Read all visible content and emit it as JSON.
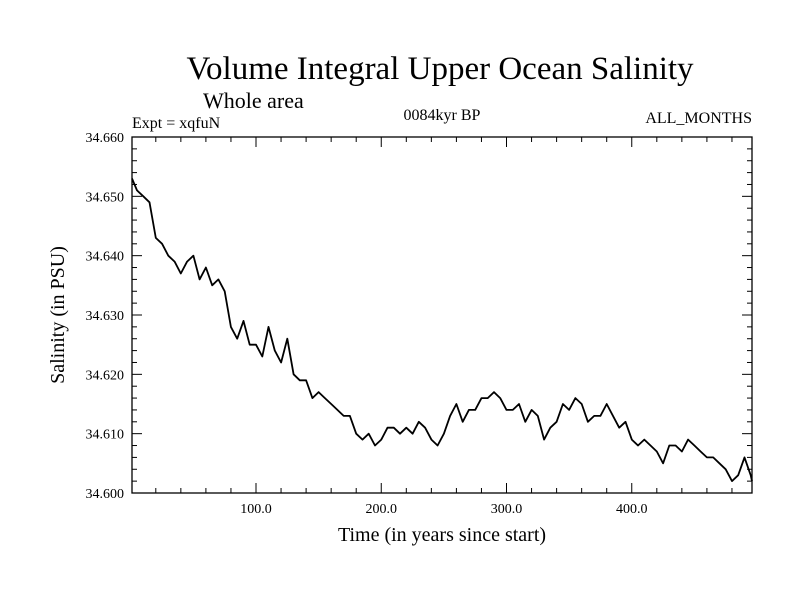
{
  "chart_data": {
    "type": "line",
    "title": "Volume Integral Upper Ocean Salinity",
    "subtitle": "Whole area",
    "experiment": "Expt = xqfuN",
    "period": "0084kyr BP",
    "months": "ALL_MONTHS",
    "xlabel": "Time (in years since start)",
    "ylabel": "Salinity (in PSU)",
    "xlim": [
      1,
      496
    ],
    "ylim": [
      34.6,
      34.66
    ],
    "x_ticks": [
      100,
      200,
      300,
      400
    ],
    "x_tick_labels": [
      "100.0",
      "200.0",
      "300.0",
      "400.0"
    ],
    "y_ticks": [
      34.6,
      34.61,
      34.62,
      34.63,
      34.64,
      34.65,
      34.66
    ],
    "y_tick_labels": [
      "34.600",
      "34.610",
      "34.620",
      "34.630",
      "34.640",
      "34.650",
      "34.660"
    ],
    "line_color": "#000000",
    "series": [
      {
        "name": "salinity",
        "x": [
          1,
          5,
          10,
          15,
          20,
          25,
          30,
          35,
          40,
          45,
          50,
          55,
          60,
          65,
          70,
          75,
          80,
          85,
          90,
          95,
          100,
          105,
          110,
          115,
          120,
          125,
          130,
          135,
          140,
          145,
          150,
          155,
          160,
          165,
          170,
          175,
          180,
          185,
          190,
          195,
          200,
          205,
          210,
          215,
          220,
          225,
          230,
          235,
          240,
          245,
          250,
          255,
          260,
          265,
          270,
          275,
          280,
          285,
          290,
          295,
          300,
          305,
          310,
          315,
          320,
          325,
          330,
          335,
          340,
          345,
          350,
          355,
          360,
          365,
          370,
          375,
          380,
          385,
          390,
          395,
          400,
          405,
          410,
          415,
          420,
          425,
          430,
          435,
          440,
          445,
          450,
          455,
          460,
          465,
          470,
          475,
          480,
          485,
          490,
          495,
          496
        ],
        "values": [
          34.653,
          34.651,
          34.65,
          34.649,
          34.643,
          34.642,
          34.64,
          34.639,
          34.637,
          34.639,
          34.64,
          34.636,
          34.638,
          34.635,
          34.636,
          34.634,
          34.628,
          34.626,
          34.629,
          34.625,
          34.625,
          34.623,
          34.628,
          34.624,
          34.622,
          34.626,
          34.62,
          34.619,
          34.619,
          34.616,
          34.617,
          34.616,
          34.615,
          34.614,
          34.613,
          34.613,
          34.61,
          34.609,
          34.61,
          34.608,
          34.609,
          34.611,
          34.611,
          34.61,
          34.611,
          34.61,
          34.612,
          34.611,
          34.609,
          34.608,
          34.61,
          34.613,
          34.615,
          34.612,
          34.614,
          34.614,
          34.616,
          34.616,
          34.617,
          34.616,
          34.614,
          34.614,
          34.615,
          34.612,
          34.614,
          34.613,
          34.609,
          34.611,
          34.612,
          34.615,
          34.614,
          34.616,
          34.615,
          34.612,
          34.613,
          34.613,
          34.615,
          34.613,
          34.611,
          34.612,
          34.609,
          34.608,
          34.609,
          34.608,
          34.607,
          34.605,
          34.608,
          34.608,
          34.607,
          34.609,
          34.608,
          34.607,
          34.606,
          34.606,
          34.605,
          34.604,
          34.602,
          34.603,
          34.606,
          34.603,
          34.602
        ]
      }
    ]
  }
}
